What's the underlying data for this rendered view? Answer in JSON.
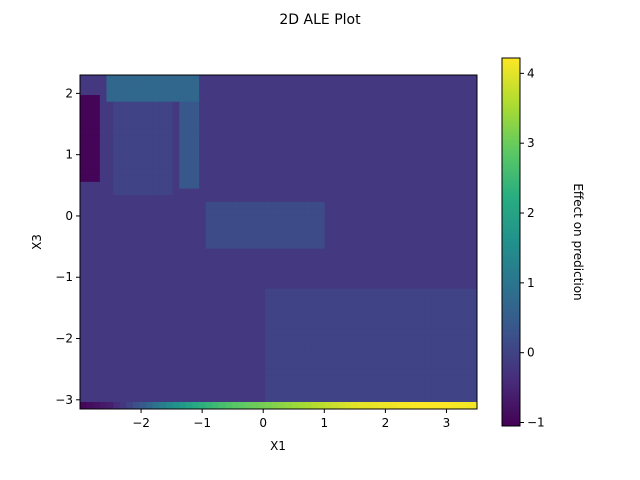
{
  "chart_data": {
    "type": "heatmap",
    "title": "2D ALE Plot",
    "xlabel": "X1",
    "ylabel": "X3",
    "xlim": [
      -3.0,
      3.5
    ],
    "ylim": [
      -3.15,
      2.3
    ],
    "x_ticks": [
      -2,
      -1,
      0,
      1,
      2,
      3
    ],
    "y_ticks": [
      -3,
      -2,
      -1,
      0,
      1,
      2
    ],
    "colormap": "viridis",
    "colorbar": {
      "label": "Effect on prediction",
      "range": [
        -1.05,
        4.22
      ],
      "ticks": [
        -1,
        0,
        1,
        2,
        3,
        4
      ]
    },
    "grid": false,
    "legend": "none",
    "value_estimates": {
      "background": -0.2,
      "min_region": {
        "x": [
          -3.0,
          -2.65
        ],
        "y": [
          0.6,
          2.0
        ],
        "value": -1.0
      },
      "bottom_edge_row": {
        "y": -3.1,
        "x": [
          -3.0,
          -2.5,
          -2.0,
          -1.5,
          -1.0,
          -0.5,
          0.0,
          0.5,
          1.0,
          1.5,
          2.0,
          2.5,
          3.0,
          3.5
        ],
        "values": [
          -1.0,
          -0.6,
          0.4,
          1.5,
          2.3,
          2.8,
          3.1,
          3.4,
          3.7,
          4.0,
          4.1,
          4.2,
          4.2,
          4.1
        ]
      },
      "bands": [
        {
          "x": [
            -2.6,
            -1.1
          ],
          "y": [
            1.85,
            2.3
          ],
          "value": 0.7
        },
        {
          "x": [
            -1.35,
            -1.0
          ],
          "y": [
            0.4,
            2.3
          ],
          "value": 0.4
        },
        {
          "x": [
            -0.9,
            1.0
          ],
          "y": [
            -0.5,
            0.2
          ],
          "value": 0.15
        },
        {
          "x": [
            0.0,
            3.5
          ],
          "y": [
            -3.0,
            -1.2
          ],
          "value": 0.0
        },
        {
          "x": [
            -2.5,
            -1.5
          ],
          "y": [
            0.3,
            1.9
          ],
          "value": 0.0
        }
      ]
    }
  }
}
